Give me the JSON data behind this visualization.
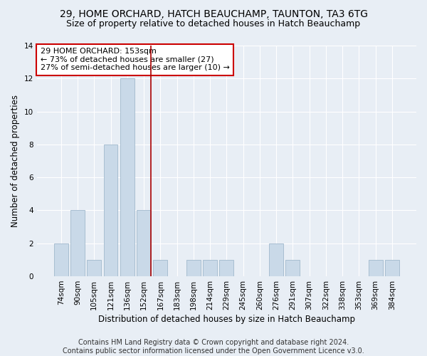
{
  "title1": "29, HOME ORCHARD, HATCH BEAUCHAMP, TAUNTON, TA3 6TG",
  "title2": "Size of property relative to detached houses in Hatch Beauchamp",
  "xlabel": "Distribution of detached houses by size in Hatch Beauchamp",
  "ylabel": "Number of detached properties",
  "categories": [
    "74sqm",
    "90sqm",
    "105sqm",
    "121sqm",
    "136sqm",
    "152sqm",
    "167sqm",
    "183sqm",
    "198sqm",
    "214sqm",
    "229sqm",
    "245sqm",
    "260sqm",
    "276sqm",
    "291sqm",
    "307sqm",
    "322sqm",
    "338sqm",
    "353sqm",
    "369sqm",
    "384sqm"
  ],
  "values": [
    2,
    4,
    1,
    8,
    12,
    4,
    1,
    0,
    1,
    1,
    1,
    0,
    0,
    2,
    1,
    0,
    0,
    0,
    0,
    1,
    1
  ],
  "bar_color": "#c9d9e8",
  "bar_edgecolor": "#a0b8cc",
  "vline_color": "#aa0000",
  "annotation_line1": "29 HOME ORCHARD: 153sqm",
  "annotation_line2": "← 73% of detached houses are smaller (27)",
  "annotation_line3": "27% of semi-detached houses are larger (10) →",
  "annotation_box_facecolor": "#ffffff",
  "annotation_box_edgecolor": "#cc0000",
  "ylim": [
    0,
    14
  ],
  "yticks": [
    0,
    2,
    4,
    6,
    8,
    10,
    12,
    14
  ],
  "footnote": "Contains HM Land Registry data © Crown copyright and database right 2024.\nContains public sector information licensed under the Open Government Licence v3.0.",
  "bg_color": "#e8eef5",
  "plot_bg_color": "#e8eef5",
  "grid_color": "#ffffff",
  "title1_fontsize": 10,
  "title2_fontsize": 9,
  "xlabel_fontsize": 8.5,
  "ylabel_fontsize": 8.5,
  "tick_fontsize": 7.5,
  "annotation_fontsize": 8,
  "footnote_fontsize": 7
}
